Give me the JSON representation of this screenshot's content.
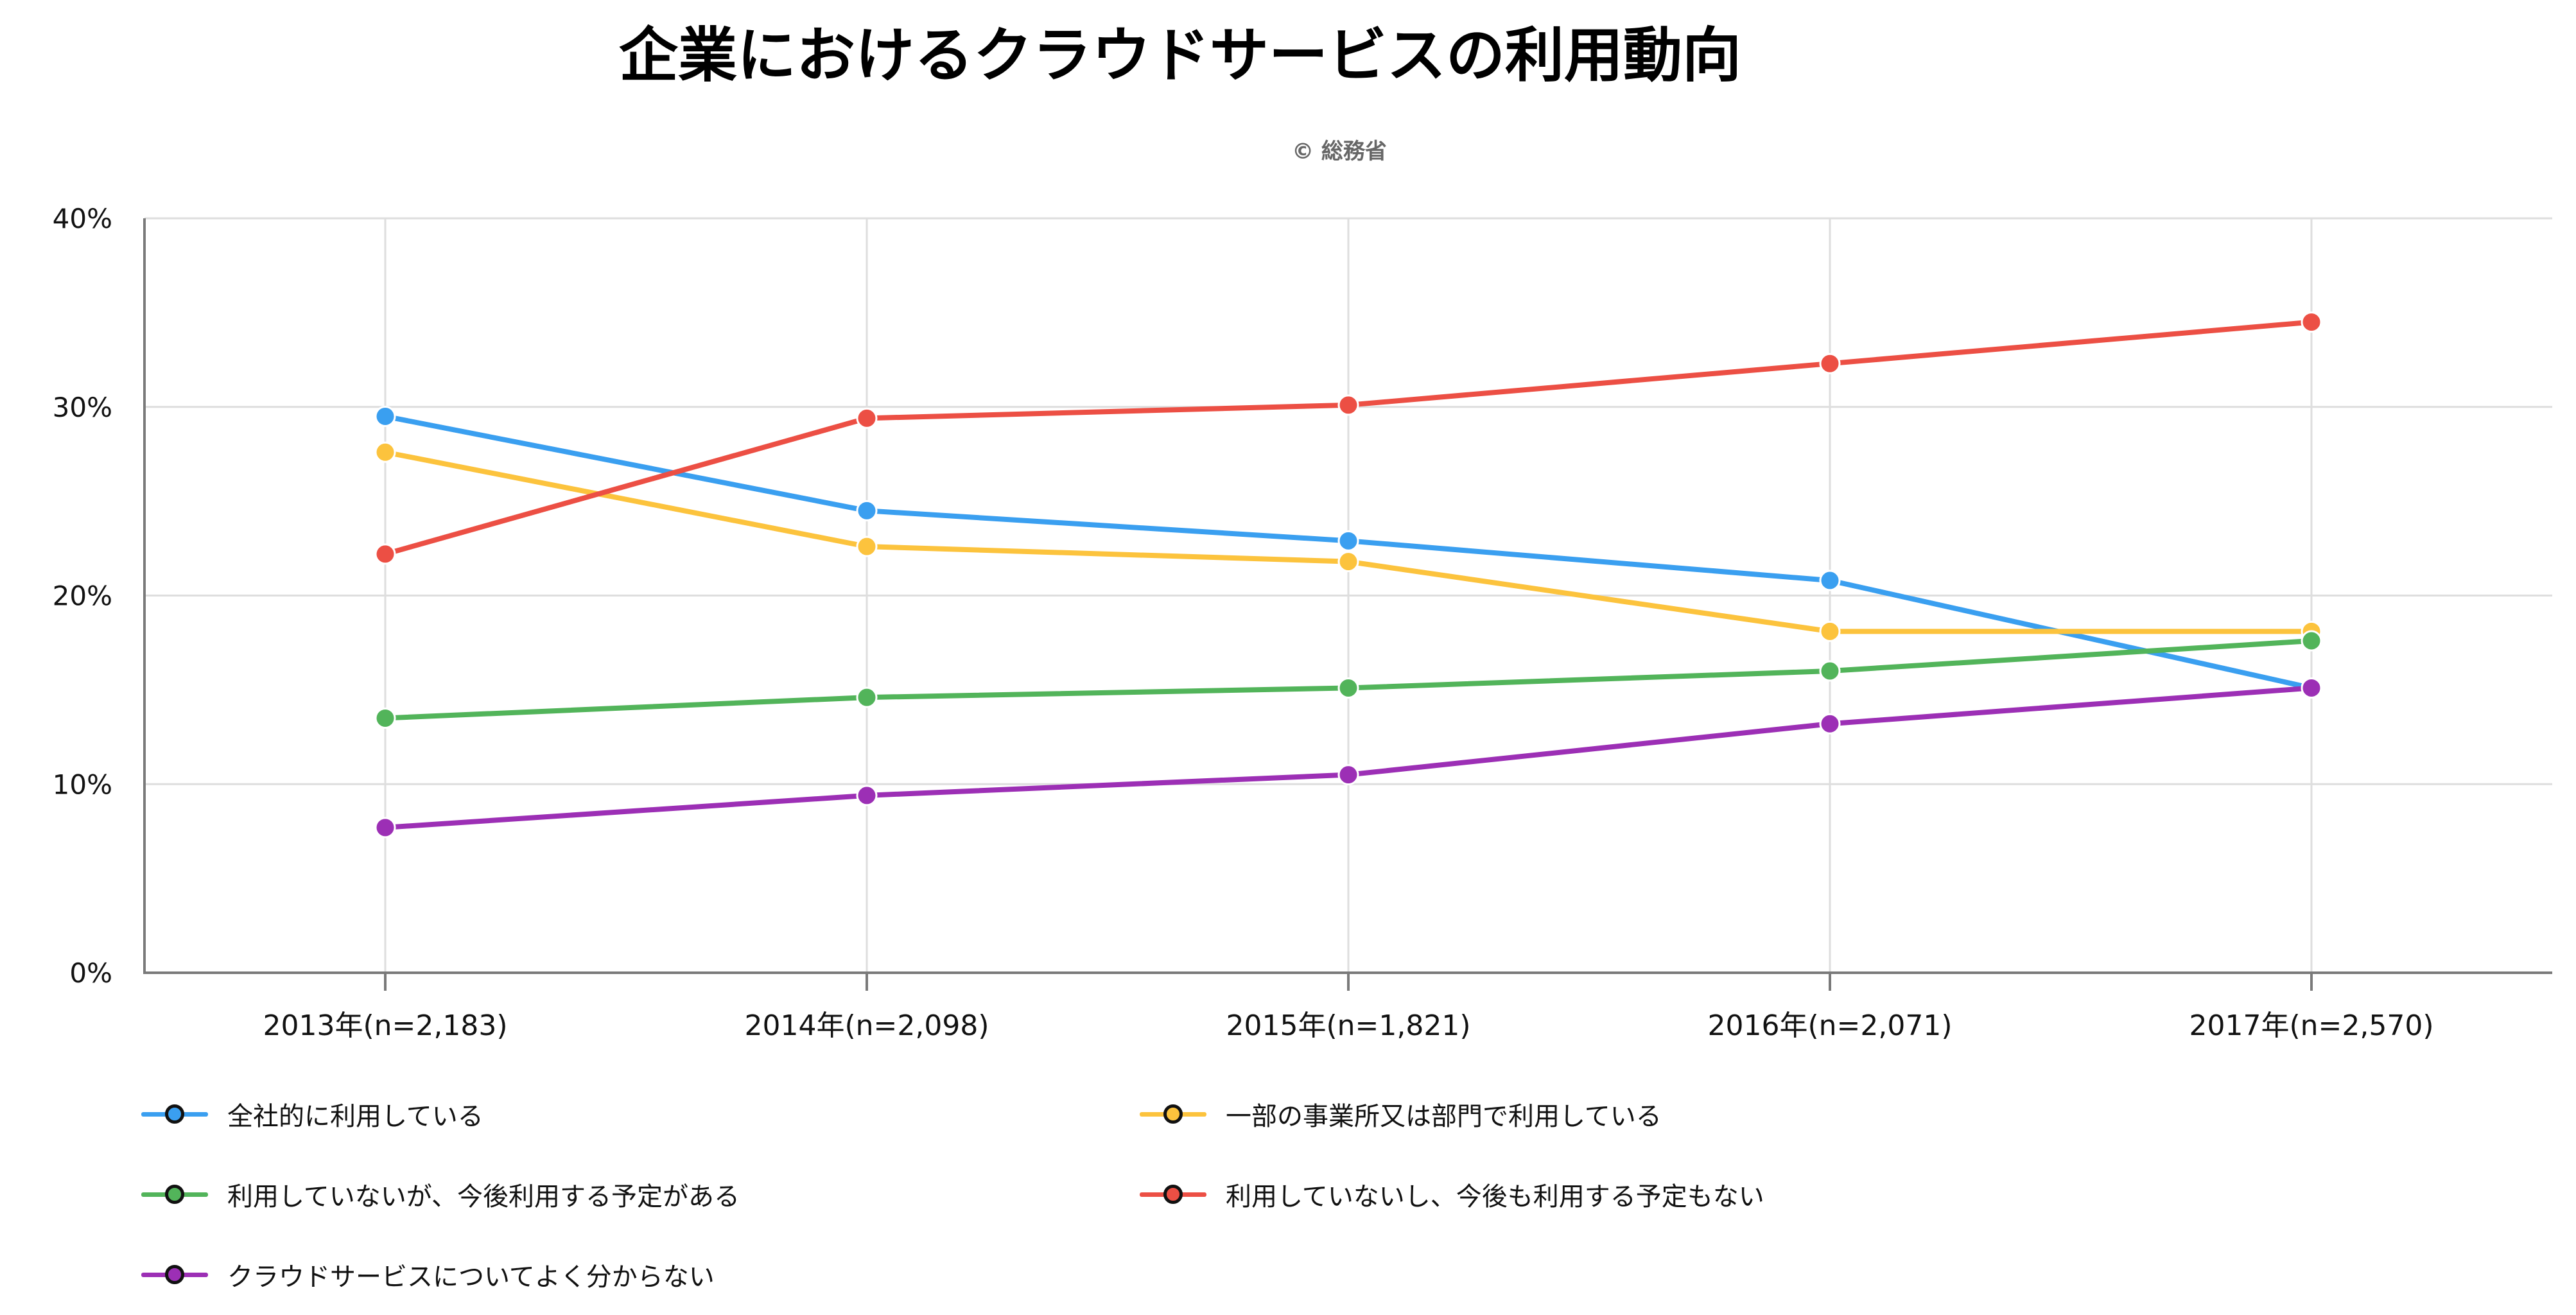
{
  "chart_data": {
    "type": "line",
    "title": "企業におけるクラウドサービスの利用動向",
    "subtitle": "© 総務省",
    "xlabel": "",
    "ylabel": "",
    "ylim": [
      0,
      40
    ],
    "y_ticks": [
      0,
      10,
      20,
      30,
      40
    ],
    "y_tick_suffix": "%",
    "grid": true,
    "legend_position": "bottom",
    "categories": [
      "2013年(n=2,183)",
      "2014年(n=2,098)",
      "2015年(n=1,821)",
      "2016年(n=2,071)",
      "2017年(n=2,570)"
    ],
    "series": [
      {
        "name": "全社的に利用している",
        "color": "#3a9ff0",
        "values": [
          29.5,
          24.5,
          22.9,
          20.8,
          15.1
        ]
      },
      {
        "name": "一部の事業所又は部門で利用している",
        "color": "#fcc33d",
        "values": [
          27.6,
          22.6,
          21.8,
          18.1,
          18.1
        ]
      },
      {
        "name": "利用していないが、今後利用する予定がある",
        "color": "#52b45a",
        "values": [
          13.5,
          14.6,
          15.1,
          16.0,
          17.6
        ]
      },
      {
        "name": "利用していないし、今後も利用する予定もない",
        "color": "#ec4f44",
        "values": [
          22.2,
          29.4,
          30.1,
          32.3,
          34.5
        ]
      },
      {
        "name": "クラウドサービスについてよく分からない",
        "color": "#9c2fb5",
        "values": [
          7.7,
          9.4,
          10.5,
          13.2,
          15.1
        ]
      }
    ]
  }
}
